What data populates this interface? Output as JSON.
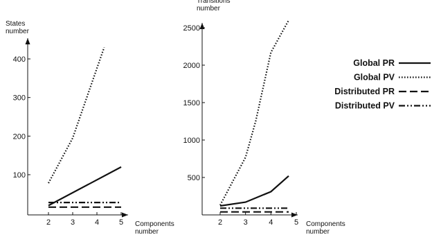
{
  "chart_data": [
    {
      "type": "line",
      "xlabel": "Components number",
      "ylabel": "States number",
      "x": [
        2,
        3,
        4,
        5
      ],
      "x_ticks": [
        "2",
        "3",
        "4",
        "5"
      ],
      "y_ticks": [
        "100",
        "200",
        "300",
        "400"
      ],
      "y_tick_values": [
        100,
        200,
        300,
        400
      ],
      "xlim": [
        1,
        5.5
      ],
      "ylim": [
        -20,
        460
      ],
      "grid": false,
      "series": [
        {
          "name": "Global PR",
          "style": "solid",
          "points": [
            [
              2,
              20
            ],
            [
              5,
              120
            ]
          ]
        },
        {
          "name": "Global PV",
          "style": "dotted",
          "points": [
            [
              2,
              78
            ],
            [
              3,
              195
            ],
            [
              4.3,
              430
            ]
          ]
        },
        {
          "name": "Distributed PR",
          "style": "dashed",
          "points": [
            [
              2,
              16
            ],
            [
              5,
              16
            ]
          ]
        },
        {
          "name": "Distributed PV",
          "style": "dashdotdot",
          "points": [
            [
              2,
              28
            ],
            [
              5,
              28
            ]
          ]
        }
      ]
    },
    {
      "type": "line",
      "xlabel": "Components number",
      "ylabel": "Transitions number",
      "x": [
        2,
        3,
        4,
        5
      ],
      "x_ticks": [
        "2",
        "3",
        "4",
        "5"
      ],
      "y_ticks": [
        "500",
        "1000",
        "1500",
        "2000",
        "2500"
      ],
      "y_tick_values": [
        500,
        1000,
        1500,
        2000,
        2500
      ],
      "xlim": [
        1.3,
        5.5
      ],
      "ylim": [
        -80,
        2620
      ],
      "grid": false,
      "series": [
        {
          "name": "Global PR",
          "style": "solid",
          "points": [
            [
              2,
              120
            ],
            [
              3,
              170
            ],
            [
              4,
              310
            ],
            [
              4.7,
              520
            ]
          ]
        },
        {
          "name": "Global PV",
          "style": "dotted",
          "points": [
            [
              2,
              130
            ],
            [
              3,
              770
            ],
            [
              3.4,
              1250
            ],
            [
              4,
              2170
            ],
            [
              4.7,
              2600
            ]
          ]
        },
        {
          "name": "Distributed PR",
          "style": "dashed",
          "points": [
            [
              2,
              40
            ],
            [
              4.7,
              40
            ]
          ]
        },
        {
          "name": "Distributed PV",
          "style": "dashdotdot",
          "points": [
            [
              2,
              90
            ],
            [
              4.7,
              90
            ]
          ]
        }
      ]
    }
  ],
  "legend": {
    "placement": "right",
    "items": [
      {
        "label": "Global PR",
        "style": "solid"
      },
      {
        "label": "Global PV",
        "style": "dotted"
      },
      {
        "label": "Distributed PR",
        "style": "dashed"
      },
      {
        "label": "Distributed PV",
        "style": "dashdotdot"
      }
    ]
  }
}
